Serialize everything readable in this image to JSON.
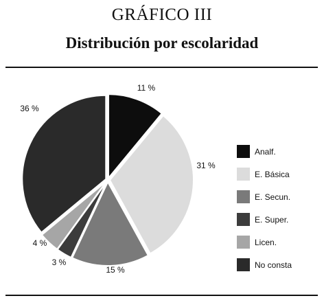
{
  "header": {
    "title": "GRÁFICO III",
    "subtitle": "Distribución por escolaridad"
  },
  "chart_data": {
    "type": "pie",
    "title": "Distribución por escolaridad",
    "legend_position": "right",
    "slices": [
      {
        "name": "Analf.",
        "value": 11,
        "label": "11 %",
        "color": "#0d0d0d"
      },
      {
        "name": "E. Básica",
        "value": 31,
        "label": "31 %",
        "color": "#dcdcdc"
      },
      {
        "name": "E. Secun.",
        "value": 15,
        "label": "15 %",
        "color": "#7a7a7a"
      },
      {
        "name": "E. Super.",
        "value": 3,
        "label": "3 %",
        "color": "#3c3c3c"
      },
      {
        "name": "Licen.",
        "value": 4,
        "label": "4 %",
        "color": "#a6a6a6"
      },
      {
        "name": "No consta",
        "value": 36,
        "label": "36 %",
        "color": "#2a2a2a"
      }
    ]
  }
}
